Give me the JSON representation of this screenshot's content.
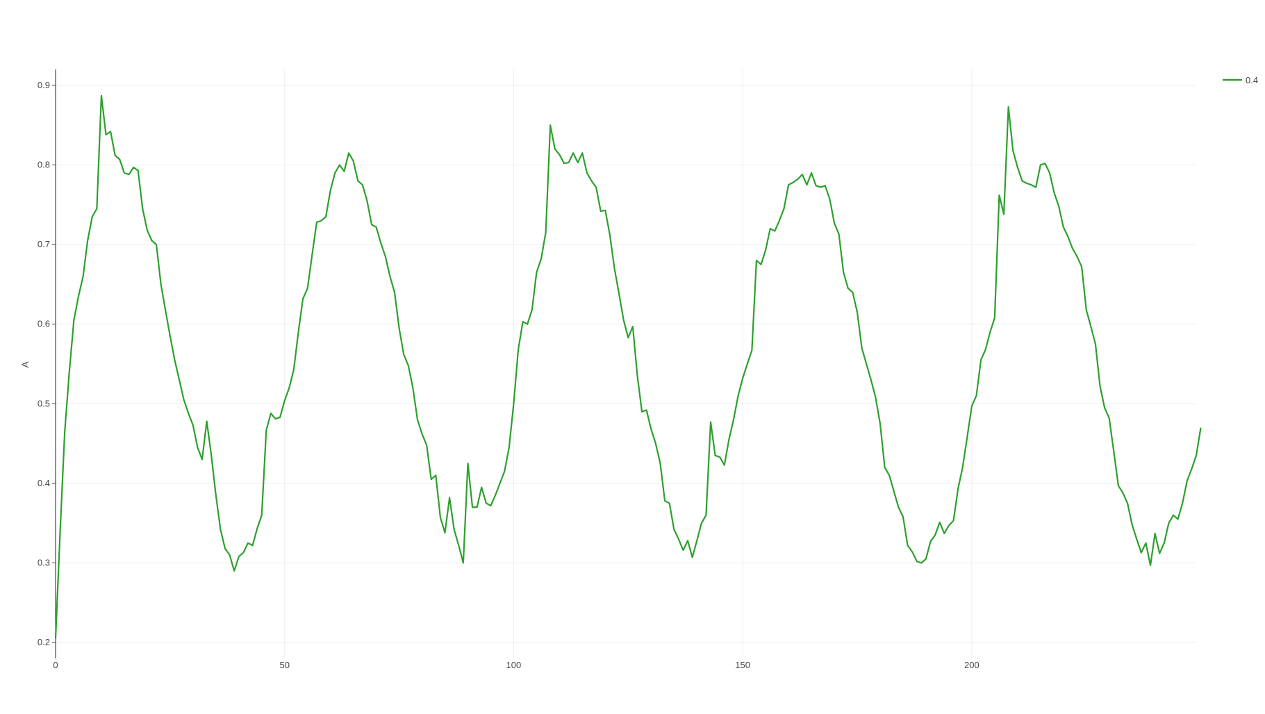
{
  "chart_data": {
    "type": "line",
    "title": "",
    "xlabel": "",
    "ylabel": "A",
    "xlim": [
      0,
      249
    ],
    "ylim": [
      0.18,
      0.92
    ],
    "x_ticks": [
      0,
      50,
      100,
      150,
      200
    ],
    "y_ticks": [
      0.2,
      0.3,
      0.4,
      0.5,
      0.6,
      0.7,
      0.8,
      0.9
    ],
    "grid": true,
    "legend_position": "top-right",
    "series": [
      {
        "name": "0.4",
        "color": "#2ca02c",
        "x_start": 0,
        "x_step": 1,
        "y": [
          0.205,
          0.34,
          0.465,
          0.54,
          0.605,
          0.635,
          0.66,
          0.705,
          0.735,
          0.745,
          0.887,
          0.838,
          0.842,
          0.812,
          0.807,
          0.79,
          0.788,
          0.797,
          0.793,
          0.745,
          0.718,
          0.705,
          0.7,
          0.65,
          0.617,
          0.585,
          0.555,
          0.53,
          0.505,
          0.488,
          0.473,
          0.445,
          0.43,
          0.478,
          0.435,
          0.385,
          0.342,
          0.318,
          0.31,
          0.29,
          0.308,
          0.313,
          0.325,
          0.322,
          0.343,
          0.36,
          0.467,
          0.488,
          0.481,
          0.483,
          0.504,
          0.52,
          0.543,
          0.59,
          0.632,
          0.645,
          0.687,
          0.728,
          0.73,
          0.735,
          0.768,
          0.79,
          0.8,
          0.792,
          0.815,
          0.805,
          0.78,
          0.775,
          0.755,
          0.725,
          0.722,
          0.702,
          0.685,
          0.66,
          0.64,
          0.595,
          0.562,
          0.548,
          0.52,
          0.48,
          0.462,
          0.448,
          0.405,
          0.41,
          0.357,
          0.338,
          0.382,
          0.342,
          0.322,
          0.3,
          0.425,
          0.37,
          0.37,
          0.395,
          0.375,
          0.372,
          0.385,
          0.4,
          0.415,
          0.445,
          0.5,
          0.568,
          0.603,
          0.6,
          0.618,
          0.665,
          0.682,
          0.715,
          0.85,
          0.82,
          0.813,
          0.802,
          0.803,
          0.815,
          0.803,
          0.815,
          0.79,
          0.78,
          0.772,
          0.742,
          0.743,
          0.712,
          0.67,
          0.638,
          0.605,
          0.583,
          0.597,
          0.535,
          0.49,
          0.492,
          0.468,
          0.45,
          0.425,
          0.378,
          0.375,
          0.342,
          0.33,
          0.316,
          0.328,
          0.307,
          0.328,
          0.35,
          0.36,
          0.477,
          0.435,
          0.433,
          0.423,
          0.455,
          0.48,
          0.51,
          0.532,
          0.55,
          0.567,
          0.68,
          0.675,
          0.693,
          0.72,
          0.717,
          0.73,
          0.745,
          0.775,
          0.778,
          0.782,
          0.788,
          0.775,
          0.79,
          0.774,
          0.772,
          0.774,
          0.757,
          0.727,
          0.713,
          0.665,
          0.645,
          0.64,
          0.615,
          0.57,
          0.55,
          0.53,
          0.508,
          0.475,
          0.42,
          0.41,
          0.39,
          0.37,
          0.358,
          0.322,
          0.314,
          0.302,
          0.3,
          0.305,
          0.327,
          0.335,
          0.351,
          0.337,
          0.347,
          0.353,
          0.393,
          0.42,
          0.458,
          0.497,
          0.51,
          0.555,
          0.568,
          0.59,
          0.608,
          0.762,
          0.738,
          0.873,
          0.818,
          0.797,
          0.78,
          0.777,
          0.775,
          0.772,
          0.8,
          0.802,
          0.79,
          0.765,
          0.748,
          0.722,
          0.71,
          0.695,
          0.685,
          0.672,
          0.618,
          0.597,
          0.575,
          0.522,
          0.495,
          0.482,
          0.44,
          0.397,
          0.388,
          0.375,
          0.348,
          0.33,
          0.313,
          0.325,
          0.297,
          0.337,
          0.312,
          0.325,
          0.35,
          0.36,
          0.355,
          0.375,
          0.403,
          0.418,
          0.435,
          0.47
        ]
      }
    ]
  }
}
